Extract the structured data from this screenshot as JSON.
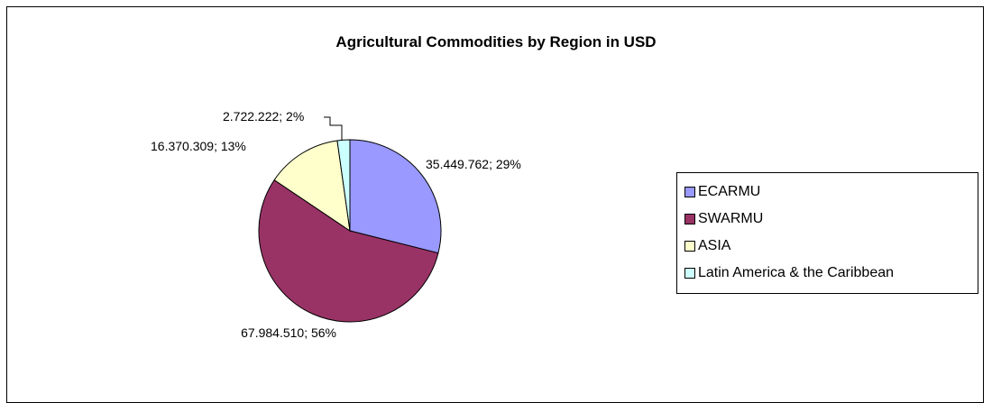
{
  "chart_data": {
    "type": "pie",
    "title": "Agricultural Commodities by Region in USD",
    "series": [
      {
        "name": "ECARMU",
        "value": 35449762,
        "percent": 29,
        "label": "35.449.762; 29%",
        "color": "#9999ff"
      },
      {
        "name": "SWARMU",
        "value": 67984510,
        "percent": 56,
        "label": "67.984.510; 56%",
        "color": "#993366"
      },
      {
        "name": "ASIA",
        "value": 16370309,
        "percent": 13,
        "label": "16.370.309; 13%",
        "color": "#ffffcc"
      },
      {
        "name": "Latin America & the Caribbean",
        "value": 2722222,
        "percent": 2,
        "label": "2.722.222; 2%",
        "color": "#ccffff"
      }
    ],
    "legend_position": "right"
  }
}
